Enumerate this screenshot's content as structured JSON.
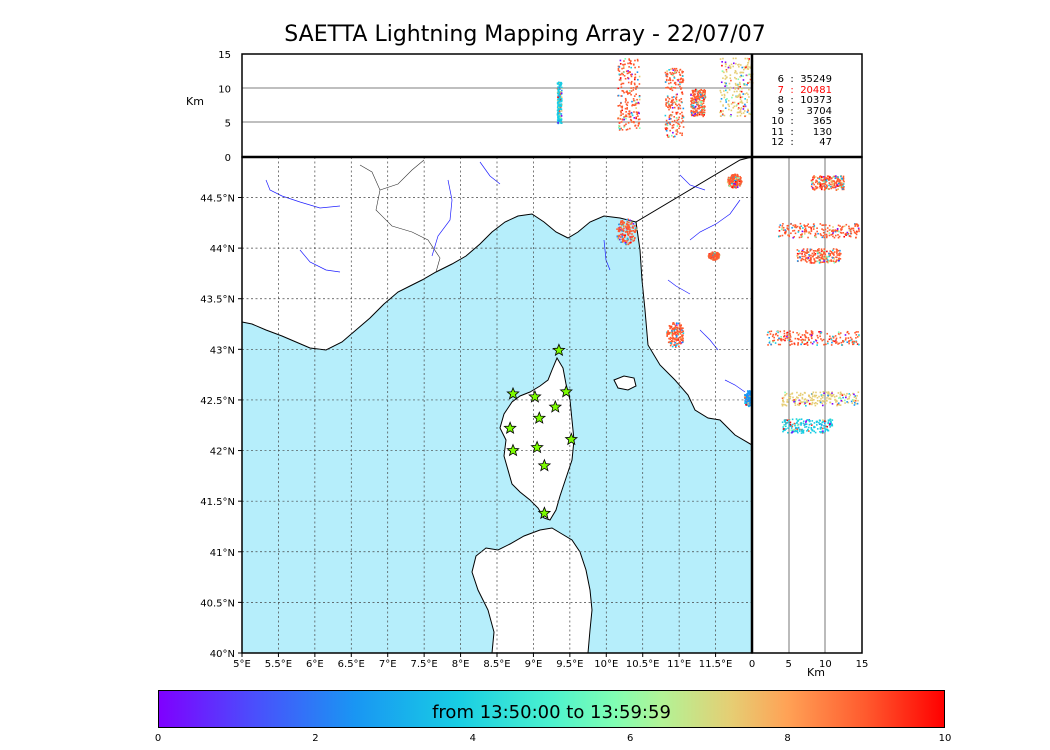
{
  "title": "SAETTA Lightning Mapping Array - 22/07/07",
  "chart_data": [
    {
      "type": "scatter",
      "panel": "altitude-vs-longitude",
      "ylabel": "Km",
      "ylim": [
        0,
        15
      ],
      "yticks": [
        "0",
        "5",
        "10",
        "15"
      ],
      "x_range_deg": [
        5,
        12
      ],
      "clusters": [
        {
          "lon_min": 9.32,
          "lon_max": 9.38,
          "alt_min": 5,
          "alt_max": 11,
          "color": "#18cde4"
        },
        {
          "lon_min": 10.15,
          "lon_max": 10.45,
          "alt_min": 4,
          "alt_max": 14.5,
          "color": "#ff5a2e"
        },
        {
          "lon_min": 10.8,
          "lon_max": 11.05,
          "alt_min": 3,
          "alt_max": 13,
          "color": "#ff5a2e"
        },
        {
          "lon_min": 11.15,
          "lon_max": 11.35,
          "alt_min": 6,
          "alt_max": 10,
          "color": "#ff5a2e"
        },
        {
          "lon_min": 11.55,
          "lon_max": 12,
          "alt_min": 6,
          "alt_max": 14.5,
          "color": "#e6cd73"
        }
      ]
    },
    {
      "type": "scatter",
      "panel": "map",
      "xticks": [
        "5°E",
        "5.5°E",
        "6°E",
        "6.5°E",
        "7°E",
        "7.5°E",
        "8°E",
        "8.5°E",
        "9°E",
        "9.5°E",
        "10°E",
        "10.5°E",
        "11°E",
        "11.5°E"
      ],
      "yticks": [
        "40°N",
        "40.5°N",
        "41°N",
        "41.5°N",
        "42°N",
        "42.5°N",
        "43°N",
        "43.5°N",
        "44°N",
        "44.5°N"
      ],
      "xlim": [
        5,
        12
      ],
      "ylim": [
        40,
        44.9
      ],
      "stations": [
        {
          "lon": 9.35,
          "lat": 42.99
        },
        {
          "lon": 8.72,
          "lat": 42.56
        },
        {
          "lon": 9.02,
          "lat": 42.53
        },
        {
          "lon": 9.45,
          "lat": 42.58
        },
        {
          "lon": 9.3,
          "lat": 42.43
        },
        {
          "lon": 9.08,
          "lat": 42.32
        },
        {
          "lon": 8.68,
          "lat": 42.22
        },
        {
          "lon": 9.52,
          "lat": 42.11
        },
        {
          "lon": 8.72,
          "lat": 42.0
        },
        {
          "lon": 9.05,
          "lat": 42.03
        },
        {
          "lon": 9.15,
          "lat": 41.85
        },
        {
          "lon": 9.15,
          "lat": 41.38
        }
      ],
      "clusters": [
        {
          "lon": 10.27,
          "lat": 44.17,
          "r_lon": 0.14,
          "r_lat": 0.13,
          "color": "#ff5a2e"
        },
        {
          "lon": 11.47,
          "lat": 43.93,
          "r_lon": 0.08,
          "r_lat": 0.04,
          "color": "#ff5a2e"
        },
        {
          "lon": 10.94,
          "lat": 43.15,
          "r_lon": 0.12,
          "r_lat": 0.13,
          "color": "#ff5a2e"
        },
        {
          "lon": 11.75,
          "lat": 44.67,
          "r_lon": 0.1,
          "r_lat": 0.07,
          "color": "#ff5a2e"
        },
        {
          "lon": 11.95,
          "lat": 42.52,
          "r_lon": 0.07,
          "r_lat": 0.08,
          "color": "#1996f3"
        }
      ]
    },
    {
      "type": "scatter",
      "panel": "latitude-vs-altitude",
      "xlabel": "Km",
      "xlim": [
        0,
        15
      ],
      "xticks": [
        "0",
        "5",
        "10",
        "15"
      ],
      "clusters": [
        {
          "lat": 44.65,
          "alt_min": 8,
          "alt_max": 12.5,
          "color": "#ff5a2e"
        },
        {
          "lat": 44.18,
          "alt_min": 3.5,
          "alt_max": 14.5,
          "color": "#ff5a2e"
        },
        {
          "lat": 43.93,
          "alt_min": 6,
          "alt_max": 12,
          "color": "#ff5a2e"
        },
        {
          "lat": 43.12,
          "alt_min": 2,
          "alt_max": 14.5,
          "color": "#ff5a2e"
        },
        {
          "lat": 42.52,
          "alt_min": 4,
          "alt_max": 14.5,
          "color": "#e6cd73"
        },
        {
          "lat": 42.25,
          "alt_min": 4,
          "alt_max": 11,
          "color": "#18cde4"
        }
      ]
    }
  ],
  "counts": [
    {
      "hour": "6",
      "sep": ":",
      "count": "35249",
      "color": "#000000"
    },
    {
      "hour": "7",
      "sep": ":",
      "count": "20481",
      "color": "#ff0000"
    },
    {
      "hour": "8",
      "sep": ":",
      "count": "10373",
      "color": "#000000"
    },
    {
      "hour": "9",
      "sep": ":",
      "count": "3704",
      "color": "#000000"
    },
    {
      "hour": "10",
      "sep": ":",
      "count": "365",
      "color": "#000000"
    },
    {
      "hour": "11",
      "sep": ":",
      "count": "130",
      "color": "#000000"
    },
    {
      "hour": "12",
      "sep": ":",
      "count": "47",
      "color": "#000000"
    }
  ],
  "colorbar": {
    "label": "from 13:50:00 to 13:59:59",
    "ticks": [
      "0",
      "2",
      "4",
      "6",
      "8",
      "10"
    ],
    "min": 0,
    "max": 10
  },
  "colors": {
    "sea": "#b6eefb",
    "land": "#ffffff",
    "river": "#2020ff"
  }
}
